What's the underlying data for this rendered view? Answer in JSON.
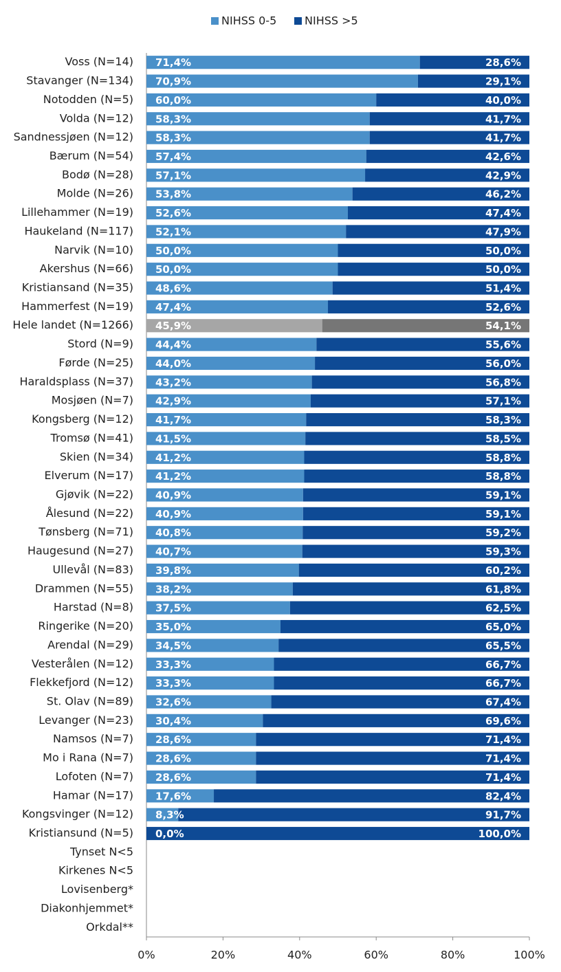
{
  "chart_data": {
    "type": "stacked_barh",
    "categories": [
      "Voss (N=14)",
      "Stavanger (N=134)",
      "Notodden (N=5)",
      "Volda (N=12)",
      "Sandnessjøen (N=12)",
      "Bærum (N=54)",
      "Bodø (N=28)",
      "Molde (N=26)",
      "Lillehammer (N=19)",
      "Haukeland (N=117)",
      "Narvik (N=10)",
      "Akershus (N=66)",
      "Kristiansand (N=35)",
      "Hammerfest (N=19)",
      "Hele landet (N=1266)",
      "Stord (N=9)",
      "Førde (N=25)",
      "Haraldsplass (N=37)",
      "Mosjøen (N=7)",
      "Kongsberg (N=12)",
      "Tromsø (N=41)",
      "Skien (N=34)",
      "Elverum (N=17)",
      "Gjøvik (N=22)",
      "Ålesund (N=22)",
      "Tønsberg (N=71)",
      "Haugesund (N=27)",
      "Ullevål (N=83)",
      "Drammen (N=55)",
      "Harstad (N=8)",
      "Ringerike (N=20)",
      "Arendal (N=29)",
      "Vesterålen (N=12)",
      "Flekkefjord (N=12)",
      "St. Olav (N=89)",
      "Levanger (N=23)",
      "Namsos (N=7)",
      "Mo i Rana (N=7)",
      "Lofoten (N=7)",
      "Hamar (N=17)",
      "Kongsvinger (N=12)",
      "Kristiansund (N=5)",
      "Tynset N<5",
      "Kirkenes N<5",
      "Lovisenberg*",
      "Diakonhjemmet*",
      "Orkdal**"
    ],
    "series": [
      {
        "name": "NIHSS 0-5",
        "color": "#4a90c9",
        "values": [
          71.4,
          70.9,
          60.0,
          58.3,
          58.3,
          57.4,
          57.1,
          53.8,
          52.6,
          52.1,
          50.0,
          50.0,
          48.6,
          47.4,
          45.9,
          44.4,
          44.0,
          43.2,
          42.9,
          41.7,
          41.5,
          41.2,
          41.2,
          40.9,
          40.9,
          40.8,
          40.7,
          39.8,
          38.2,
          37.5,
          35.0,
          34.5,
          33.3,
          33.3,
          32.6,
          30.4,
          28.6,
          28.6,
          28.6,
          17.6,
          8.3,
          0.0,
          null,
          null,
          null,
          null,
          null
        ],
        "value_labels": [
          "71,4%",
          "70,9%",
          "60,0%",
          "58,3%",
          "58,3%",
          "57,4%",
          "57,1%",
          "53,8%",
          "52,6%",
          "52,1%",
          "50,0%",
          "50,0%",
          "48,6%",
          "47,4%",
          "45,9%",
          "44,4%",
          "44,0%",
          "43,2%",
          "42,9%",
          "41,7%",
          "41,5%",
          "41,2%",
          "41,2%",
          "40,9%",
          "40,9%",
          "40,8%",
          "40,7%",
          "39,8%",
          "38,2%",
          "37,5%",
          "35,0%",
          "34,5%",
          "33,3%",
          "33,3%",
          "32,6%",
          "30,4%",
          "28,6%",
          "28,6%",
          "28,6%",
          "17,6%",
          "8,3%",
          "0,0%",
          null,
          null,
          null,
          null,
          null
        ]
      },
      {
        "name": "NIHSS >5",
        "color": "#0e4a95",
        "values": [
          28.6,
          29.1,
          40.0,
          41.7,
          41.7,
          42.6,
          42.9,
          46.2,
          47.4,
          47.9,
          50.0,
          50.0,
          51.4,
          52.6,
          54.1,
          55.6,
          56.0,
          56.8,
          57.1,
          58.3,
          58.5,
          58.8,
          58.8,
          59.1,
          59.1,
          59.2,
          59.3,
          60.2,
          61.8,
          62.5,
          65.0,
          65.5,
          66.7,
          66.7,
          67.4,
          69.6,
          71.4,
          71.4,
          71.4,
          82.4,
          91.7,
          100.0,
          null,
          null,
          null,
          null,
          null
        ],
        "value_labels": [
          "28,6%",
          "29,1%",
          "40,0%",
          "41,7%",
          "41,7%",
          "42,6%",
          "42,9%",
          "46,2%",
          "47,4%",
          "47,9%",
          "50,0%",
          "50,0%",
          "51,4%",
          "52,6%",
          "54,1%",
          "55,6%",
          "56,0%",
          "56,8%",
          "57,1%",
          "58,3%",
          "58,5%",
          "58,8%",
          "58,8%",
          "59,1%",
          "59,1%",
          "59,2%",
          "59,3%",
          "60,2%",
          "61,8%",
          "62,5%",
          "65,0%",
          "65,5%",
          "66,7%",
          "66,7%",
          "67,4%",
          "69,6%",
          "71,4%",
          "71,4%",
          "71,4%",
          "82,4%",
          "91,7%",
          "100,0%",
          null,
          null,
          null,
          null,
          null
        ]
      }
    ],
    "highlight": {
      "category": "Hele landet (N=1266)",
      "colors": [
        "#a6a6a6",
        "#767676"
      ]
    },
    "xlim": [
      0,
      100
    ],
    "xticks": [
      {
        "value": 0,
        "label": "0%"
      },
      {
        "value": 20,
        "label": "20%"
      },
      {
        "value": 40,
        "label": "40%"
      },
      {
        "value": 60,
        "label": "60%"
      },
      {
        "value": 80,
        "label": "80%"
      },
      {
        "value": 100,
        "label": "100%"
      }
    ],
    "legend": "top"
  }
}
